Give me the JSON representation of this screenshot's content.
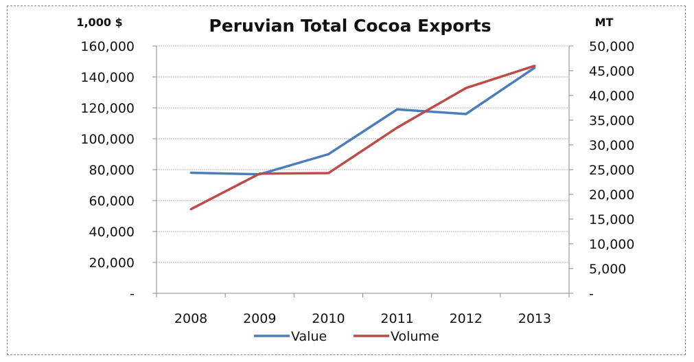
{
  "chart_data": {
    "type": "line",
    "title": "Peruvian Total Cocoa Exports",
    "y_left_unit": "1,000 $",
    "y_right_unit": "MT",
    "categories": [
      "2008",
      "2009",
      "2010",
      "2011",
      "2012",
      "2013"
    ],
    "y_left": {
      "range": [
        0,
        160000
      ],
      "ticks": [
        0,
        20000,
        40000,
        60000,
        80000,
        100000,
        120000,
        140000,
        160000
      ],
      "tick_labels": [
        "-",
        "20,000",
        "40,000",
        "60,000",
        "80,000",
        "100,000",
        "120,000",
        "140,000",
        "160,000"
      ]
    },
    "y_right": {
      "range": [
        0,
        50000
      ],
      "ticks": [
        0,
        5000,
        10000,
        15000,
        20000,
        25000,
        30000,
        35000,
        40000,
        45000,
        50000
      ],
      "tick_labels": [
        "-",
        "5,000",
        "10,000",
        "15,000",
        "20,000",
        "25,000",
        "30,000",
        "35,000",
        "40,000",
        "45,000",
        "50,000"
      ]
    },
    "series": [
      {
        "name": "Value",
        "axis": "left",
        "color": "#4a7ebb",
        "values": [
          78000,
          77000,
          90000,
          119000,
          116000,
          146000
        ]
      },
      {
        "name": "Volume",
        "axis": "right",
        "color": "#be4b48",
        "values": [
          17000,
          24200,
          24300,
          33500,
          41500,
          46000
        ]
      }
    ],
    "grid": true,
    "legend_position": "bottom"
  }
}
